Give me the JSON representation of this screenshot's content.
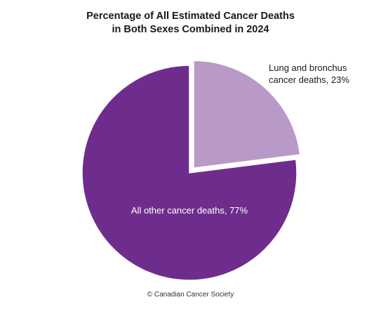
{
  "chart_data": {
    "type": "pie",
    "title_lines": [
      "Percentage of All Estimated Cancer Deaths",
      "in Both Sexes Combined in 2024"
    ],
    "slices": [
      {
        "label_lines": [
          "Lung and bronchus",
          "cancer deaths, 23%"
        ],
        "value": 23,
        "color": "#b899c8",
        "label_color": "#1a1a1a",
        "exploded": true
      },
      {
        "label_lines": [
          "All other cancer deaths, 77%"
        ],
        "value": 77,
        "color": "#6e2d8c",
        "label_color": "#ffffff",
        "exploded": false
      }
    ]
  },
  "footer": {
    "copyright": "© Canadian Cancer Society"
  }
}
